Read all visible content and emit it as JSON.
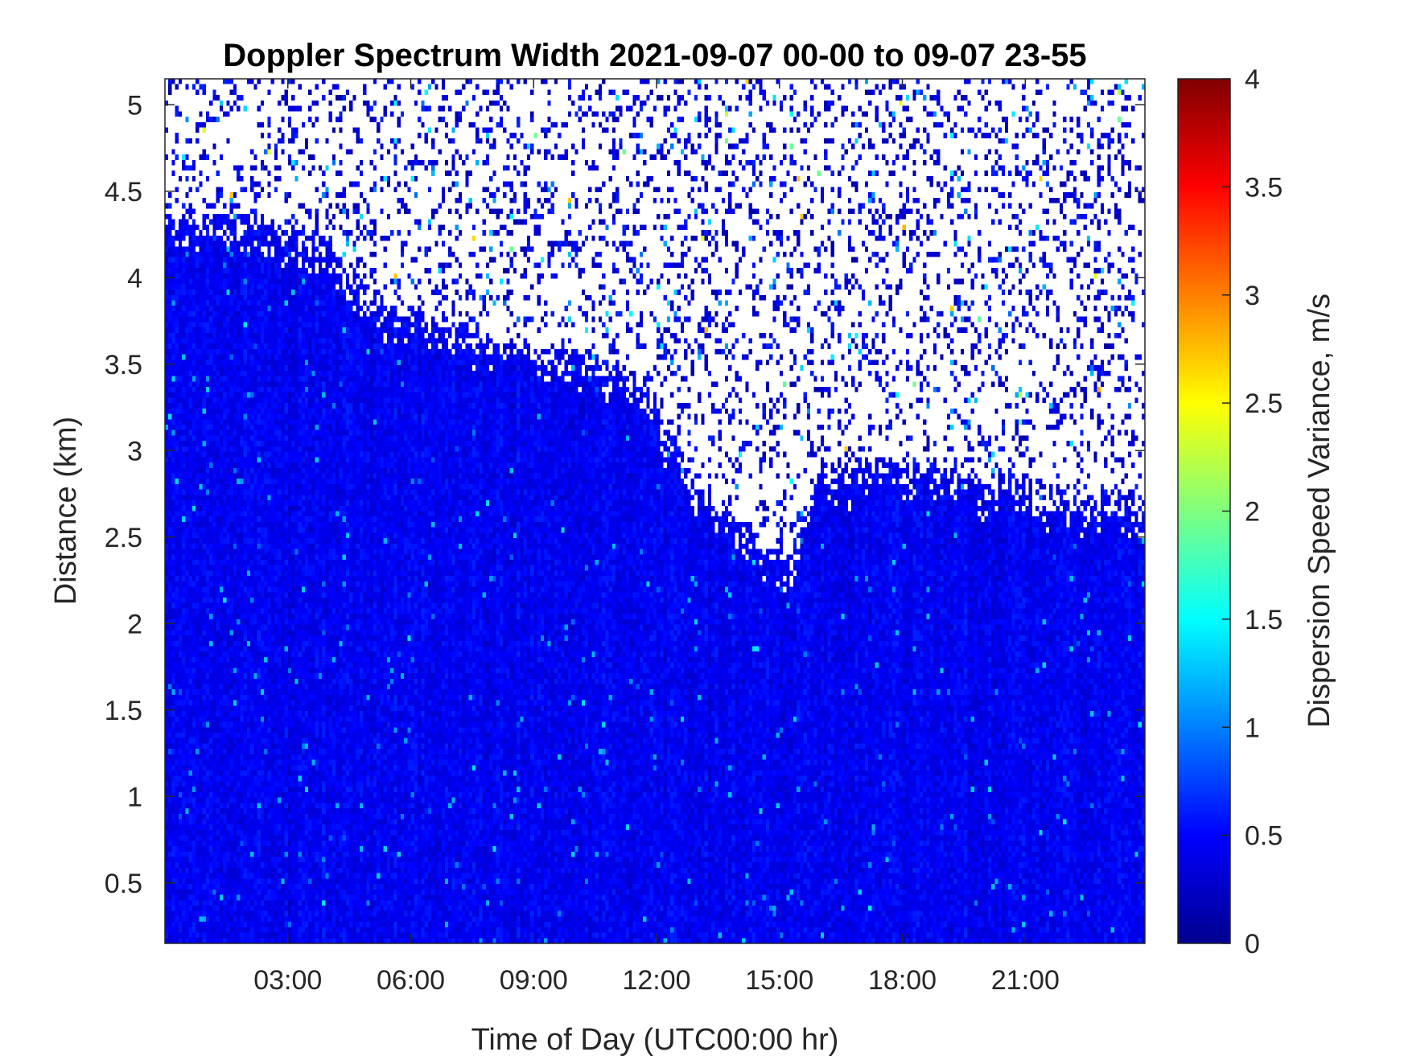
{
  "chart_data": {
    "type": "heatmap",
    "title": "Doppler Spectrum Width 2021-09-07 00-00 to 09-07 23-55",
    "xlabel": "Time of Day (UTC00:00 hr)",
    "ylabel": "Distance (km)",
    "x_unit": "hours",
    "xlim": [
      0,
      23.92
    ],
    "ylim": [
      0.15,
      5.15
    ],
    "x_ticks": [
      3,
      6,
      9,
      12,
      15,
      18,
      21
    ],
    "x_tick_labels": [
      "03:00",
      "06:00",
      "09:00",
      "12:00",
      "15:00",
      "18:00",
      "21:00"
    ],
    "y_ticks": [
      0.5,
      1,
      1.5,
      2,
      2.5,
      3,
      3.5,
      4,
      4.5,
      5
    ],
    "y_tick_labels": [
      "0.5",
      "1",
      "1.5",
      "2",
      "2.5",
      "3",
      "3.5",
      "4",
      "4.5",
      "5"
    ],
    "colorbar": {
      "label": "Dispersion Speed Variance, m/s",
      "colormap": "jet",
      "clim": [
        0,
        4
      ],
      "ticks": [
        0,
        0.5,
        1,
        1.5,
        2,
        2.5,
        3,
        3.5,
        4
      ],
      "tick_labels": [
        "0",
        "0.5",
        "1",
        "1.5",
        "2",
        "2.5",
        "3",
        "3.5",
        "4"
      ]
    },
    "grid": false,
    "time_step_minutes": 5,
    "dominant_value_range": [
      0.3,
      0.6
    ],
    "signal_top_profile": {
      "hours": [
        0,
        1.5,
        3.8,
        5,
        7,
        9,
        10.5,
        11.7,
        13,
        14.5,
        15.3,
        16,
        17.5,
        20,
        23.92
      ],
      "top_km": [
        4.4,
        4.4,
        4.25,
        3.9,
        3.75,
        3.6,
        3.55,
        3.4,
        2.8,
        2.5,
        2.4,
        2.9,
        2.95,
        2.85,
        2.7
      ]
    }
  }
}
